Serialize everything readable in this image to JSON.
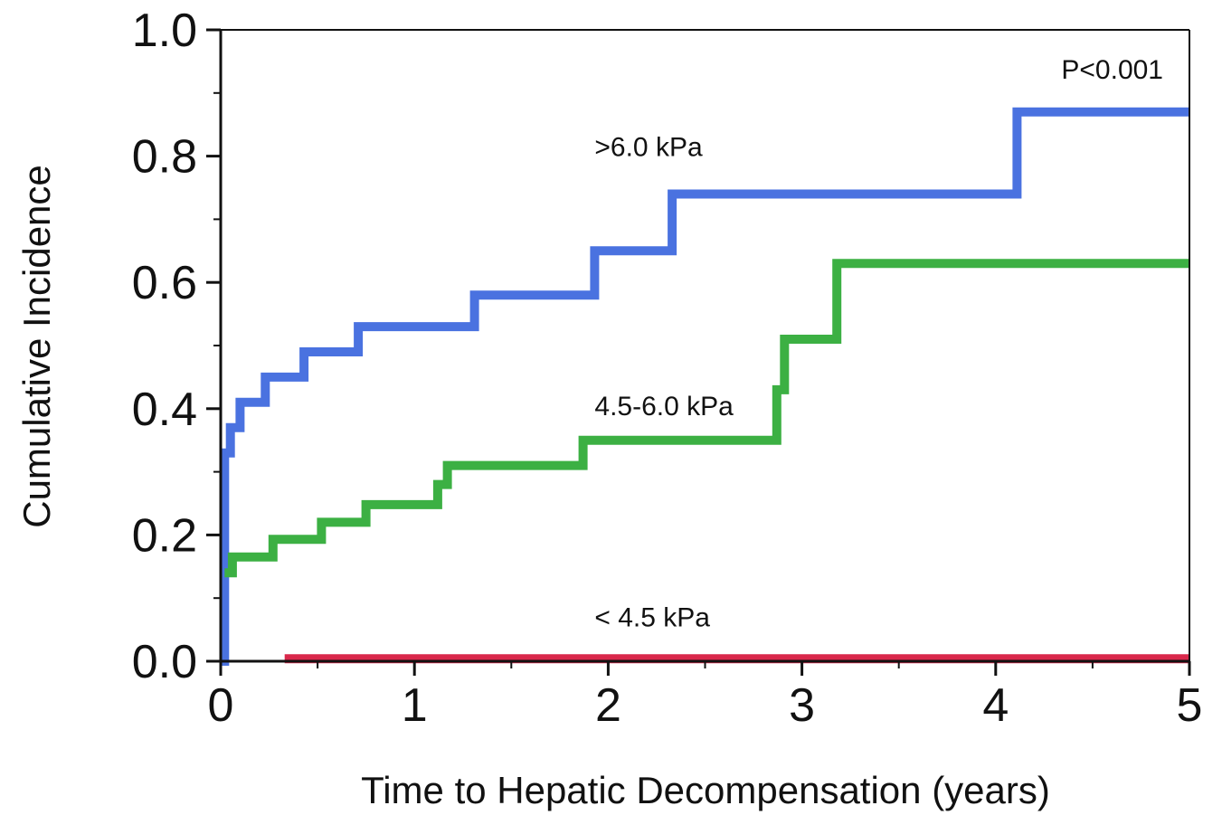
{
  "chart_data": {
    "type": "line",
    "title": "",
    "xlabel": "Time to Hepatic Decompensation (years)",
    "ylabel": "Cumulative Incidence",
    "xlim": [
      0,
      5
    ],
    "ylim": [
      0,
      1.0
    ],
    "x_ticks": [
      0,
      1,
      2,
      3,
      4,
      5
    ],
    "x_tick_labels": [
      "0",
      "1",
      "2",
      "3",
      "4",
      "5"
    ],
    "y_ticks": [
      0,
      0.2,
      0.4,
      0.6,
      0.8,
      1.0
    ],
    "y_tick_labels": [
      "0.0",
      "0.2",
      "0.4",
      "0.6",
      "0.8",
      "1.0"
    ],
    "grid": false,
    "p_value_text": "P<0.001",
    "series": [
      {
        "name": ">6.0 kPa",
        "color": "#4a72e0",
        "step": true,
        "x": [
          0,
          0.02,
          0.02,
          0.05,
          0.05,
          0.1,
          0.1,
          0.23,
          0.23,
          0.43,
          0.43,
          0.71,
          0.71,
          1.31,
          1.31,
          1.93,
          1.93,
          2.33,
          2.33,
          4.11,
          4.11,
          5.0
        ],
        "y": [
          0,
          0,
          0.33,
          0.33,
          0.37,
          0.37,
          0.41,
          0.41,
          0.45,
          0.45,
          0.49,
          0.49,
          0.53,
          0.53,
          0.58,
          0.58,
          0.65,
          0.65,
          0.74,
          0.74,
          0.87,
          0.87
        ]
      },
      {
        "name": "4.5-6.0 kPa",
        "color": "#3cb043",
        "step": true,
        "x": [
          0.02,
          0.06,
          0.06,
          0.27,
          0.27,
          0.52,
          0.52,
          0.75,
          0.75,
          1.12,
          1.12,
          1.17,
          1.17,
          1.87,
          1.87,
          2.87,
          2.87,
          2.91,
          2.91,
          3.18,
          3.18,
          5.0
        ],
        "y": [
          0.14,
          0.14,
          0.165,
          0.165,
          0.193,
          0.193,
          0.22,
          0.22,
          0.248,
          0.248,
          0.28,
          0.28,
          0.31,
          0.31,
          0.35,
          0.35,
          0.43,
          0.43,
          0.51,
          0.51,
          0.63,
          0.63
        ]
      },
      {
        "name": "< 4.5 kPa",
        "color": "#d9284b",
        "step": true,
        "x": [
          0.33,
          5.0
        ],
        "y": [
          0.004,
          0.004
        ]
      }
    ],
    "annotations": [
      {
        "text": ">6.0 kPa",
        "x": 1.93,
        "y": 0.8
      },
      {
        "text": "4.5-6.0 kPa",
        "x": 1.93,
        "y": 0.39
      },
      {
        "text": "< 4.5 kPa",
        "x": 1.93,
        "y": 0.055
      }
    ]
  }
}
